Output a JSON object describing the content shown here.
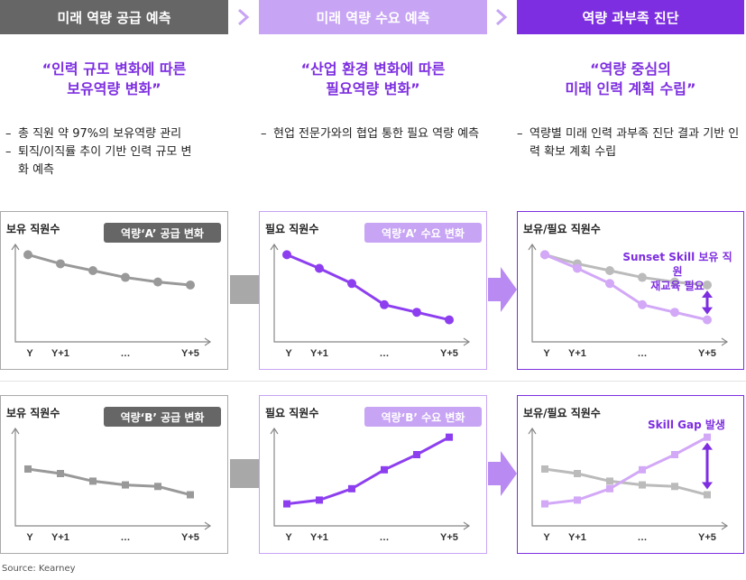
{
  "headers": [
    {
      "label": "미래 역량 공급 예측",
      "color": "#666666"
    },
    {
      "label": "미래 역량 수요 예측",
      "color": "#c7a4f4"
    },
    {
      "label": "역량 과부족 진단",
      "color": "#7d2ee0"
    }
  ],
  "quotes": [
    {
      "line1": "“인력 규모 변화에 따른",
      "line2": "보유역량 변화”"
    },
    {
      "line1": "“산업 환경 변화에 따른",
      "line2": "필요역량 변화”"
    },
    {
      "line1": "“역량 중심의",
      "line2": "미래 인력 계획 수립”"
    }
  ],
  "bullets": [
    [
      "총 직원 약 97%의 보유역량 관리",
      "퇴직/이직률 추이 기반 인력 규모 변화 예측"
    ],
    [
      "현업 전문가와의 협업 통한 필요 역량 예측"
    ],
    [
      "역량별 미래 인력 과부족 진단 결과 기반 인력 확보 계획 수립"
    ]
  ],
  "panels": {
    "supply_a": {
      "title": "보유 직원수",
      "badge": "역량‘A’ 공급 변화"
    },
    "demand_a": {
      "title": "필요 직원수",
      "badge": "역량‘A’ 수요 변화"
    },
    "diag_a": {
      "title": "보유/필요 직원수",
      "annotation_line1": "Sunset Skill 보유 직원",
      "annotation_line2": "재교육 필요"
    },
    "supply_b": {
      "title": "보유 직원수",
      "badge": "역량‘B’ 공급 변화"
    },
    "demand_b": {
      "title": "필요 직원수",
      "badge": "역량‘B’ 수요 변화"
    },
    "diag_b": {
      "title": "보유/필요 직원수",
      "annotation": "Skill Gap 발생"
    }
  },
  "x_ticks": [
    "Y",
    "Y+1",
    "…",
    "Y+5"
  ],
  "colors": {
    "gray": "#999999",
    "gray_light": "#bbbbbb",
    "purple": "#8d3ff0",
    "purple_light": "#d2a8f7",
    "arrow_gray": "#a8a8a8",
    "arrow_purple": "#b98af2"
  },
  "chart_data": [
    {
      "type": "line",
      "name": "supply_a",
      "x": [
        0,
        1,
        2,
        3,
        4,
        5
      ],
      "series": [
        {
          "values": [
            96,
            84,
            75,
            66,
            60,
            56
          ]
        }
      ],
      "ylim": [
        0,
        100
      ]
    },
    {
      "type": "line",
      "name": "demand_a",
      "x": [
        0,
        1,
        2,
        3,
        4,
        5
      ],
      "series": [
        {
          "values": [
            96,
            78,
            58,
            30,
            20,
            10
          ]
        }
      ],
      "ylim": [
        0,
        100
      ]
    },
    {
      "type": "line",
      "name": "diag_a",
      "x": [
        0,
        1,
        2,
        3,
        4,
        5
      ],
      "series": [
        {
          "values": [
            96,
            84,
            75,
            66,
            60,
            56
          ]
        },
        {
          "values": [
            96,
            78,
            58,
            30,
            20,
            10
          ]
        }
      ],
      "ylim": [
        0,
        100
      ]
    },
    {
      "type": "line",
      "name": "supply_b",
      "x": [
        0,
        1,
        2,
        3,
        4,
        5
      ],
      "series": [
        {
          "values": [
            56,
            50,
            40,
            35,
            33,
            22
          ]
        }
      ],
      "ylim": [
        0,
        100
      ]
    },
    {
      "type": "line",
      "name": "demand_b",
      "x": [
        0,
        1,
        2,
        3,
        4,
        5
      ],
      "series": [
        {
          "values": [
            10,
            15,
            30,
            55,
            75,
            98
          ]
        }
      ],
      "ylim": [
        0,
        100
      ]
    },
    {
      "type": "line",
      "name": "diag_b",
      "x": [
        0,
        1,
        2,
        3,
        4,
        5
      ],
      "series": [
        {
          "values": [
            56,
            50,
            40,
            35,
            33,
            22
          ]
        },
        {
          "values": [
            10,
            15,
            30,
            55,
            75,
            98
          ]
        }
      ],
      "ylim": [
        0,
        100
      ]
    }
  ]
}
